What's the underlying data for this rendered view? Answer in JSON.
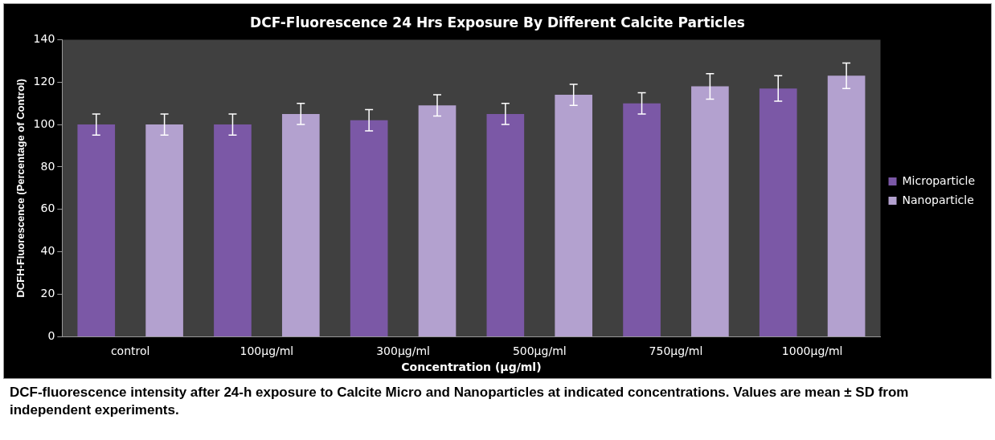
{
  "chart_data": {
    "type": "bar",
    "title": "DCF-Fluorescence 24 Hrs Exposure By Different Calcite Particles",
    "xlabel": "Concentration (µg/ml)",
    "ylabel": "DCFH-Fluorescence (Percentage of Control)",
    "categories": [
      "control",
      "100µg/ml",
      "300µg/ml",
      "500µg/ml",
      "750µg/ml",
      "1000µg/ml"
    ],
    "series": [
      {
        "name": "Microparticle",
        "color": "#7b58a6",
        "values": [
          100,
          100,
          102,
          105,
          110,
          117
        ],
        "errors": [
          5,
          5,
          5,
          5,
          5,
          6
        ]
      },
      {
        "name": "Nanoparticle",
        "color": "#b3a1cf",
        "values": [
          100,
          105,
          109,
          114,
          118,
          123
        ],
        "errors": [
          5,
          5,
          5,
          5,
          6,
          6
        ]
      }
    ],
    "ylim": [
      0,
      140
    ],
    "yticks": [
      0,
      20,
      40,
      60,
      80,
      100,
      120,
      140
    ],
    "grid": false,
    "legend": "right",
    "annotations": [
      "DCF-fluorescence intensity after 24-h exposure to Calcite Micro and Nanoparticles at indicated concentrations. Values are mean ± SD from independent experiments."
    ]
  }
}
